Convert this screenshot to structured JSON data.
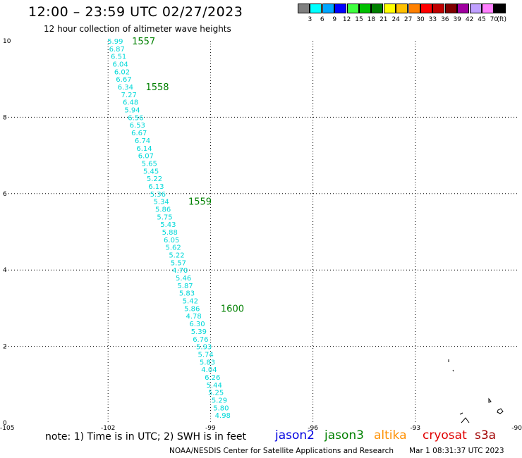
{
  "header": {
    "title": "12:00 – 23:59 UTC 02/27/2023",
    "subtitle": "12 hour collection of altimeter wave heights"
  },
  "colorbar": {
    "colors": [
      "#7f7f7f",
      "#00ffff",
      "#00a6ff",
      "#0000ff",
      "#40ff40",
      "#00c000",
      "#008000",
      "#ffff00",
      "#ffc000",
      "#ff8000",
      "#ff0000",
      "#c00000",
      "#800000",
      "#a000a0",
      "#c0a0ff",
      "#ff80ff",
      "#000000"
    ],
    "labels": [
      "3",
      "6",
      "9",
      "12",
      "15",
      "18",
      "21",
      "24",
      "27",
      "30",
      "33",
      "36",
      "39",
      "42",
      "45",
      "70"
    ],
    "unit": "(ft)"
  },
  "chart_data": {
    "type": "scatter",
    "xlim": [
      -105,
      -90
    ],
    "ylim": [
      0,
      10
    ],
    "x_ticks": [
      "-105",
      "-102",
      "-99",
      "-96",
      "-93",
      "-90"
    ],
    "y_ticks": [
      "0",
      "2",
      "4",
      "6",
      "8",
      "10"
    ],
    "grid": true,
    "track_color": "#00d8d8",
    "time_color": "#008000",
    "points": [
      {
        "x": -102.0,
        "y": 10.0,
        "v": "5.99"
      },
      {
        "x": -101.95,
        "y": 9.8,
        "v": "6.87"
      },
      {
        "x": -101.9,
        "y": 9.6,
        "v": "6.51"
      },
      {
        "x": -101.85,
        "y": 9.4,
        "v": "6.04"
      },
      {
        "x": -101.8,
        "y": 9.2,
        "v": "6.02"
      },
      {
        "x": -101.75,
        "y": 9.0,
        "v": "6.67"
      },
      {
        "x": -101.7,
        "y": 8.8,
        "v": "6.34"
      },
      {
        "x": -101.6,
        "y": 8.6,
        "v": "7.27"
      },
      {
        "x": -101.55,
        "y": 8.4,
        "v": "6.48"
      },
      {
        "x": -101.5,
        "y": 8.2,
        "v": "5.94"
      },
      {
        "x": -101.4,
        "y": 8.0,
        "v": "6.56"
      },
      {
        "x": -101.35,
        "y": 7.8,
        "v": "6.53"
      },
      {
        "x": -101.3,
        "y": 7.6,
        "v": "6.67"
      },
      {
        "x": -101.2,
        "y": 7.4,
        "v": "6.74"
      },
      {
        "x": -101.15,
        "y": 7.2,
        "v": "6.14"
      },
      {
        "x": -101.1,
        "y": 7.0,
        "v": "6.07"
      },
      {
        "x": -101.0,
        "y": 6.8,
        "v": "5.65"
      },
      {
        "x": -100.95,
        "y": 6.6,
        "v": "5.45"
      },
      {
        "x": -100.85,
        "y": 6.4,
        "v": "5.22"
      },
      {
        "x": -100.8,
        "y": 6.2,
        "v": "6.13"
      },
      {
        "x": -100.75,
        "y": 6.0,
        "v": "5.36"
      },
      {
        "x": -100.65,
        "y": 5.8,
        "v": "5.34"
      },
      {
        "x": -100.6,
        "y": 5.6,
        "v": "5.86"
      },
      {
        "x": -100.55,
        "y": 5.4,
        "v": "5.75"
      },
      {
        "x": -100.45,
        "y": 5.2,
        "v": "5.43"
      },
      {
        "x": -100.4,
        "y": 5.0,
        "v": "5.88"
      },
      {
        "x": -100.35,
        "y": 4.8,
        "v": "6.05"
      },
      {
        "x": -100.3,
        "y": 4.6,
        "v": "5.62"
      },
      {
        "x": -100.2,
        "y": 4.4,
        "v": "5.22"
      },
      {
        "x": -100.15,
        "y": 4.2,
        "v": "5.57"
      },
      {
        "x": -100.1,
        "y": 4.0,
        "v": "4.70"
      },
      {
        "x": -100.0,
        "y": 3.8,
        "v": "5.46"
      },
      {
        "x": -99.95,
        "y": 3.6,
        "v": "5.87"
      },
      {
        "x": -99.9,
        "y": 3.4,
        "v": "5.83"
      },
      {
        "x": -99.8,
        "y": 3.2,
        "v": "5.42"
      },
      {
        "x": -99.75,
        "y": 3.0,
        "v": "5.86"
      },
      {
        "x": -99.7,
        "y": 2.8,
        "v": "4.78"
      },
      {
        "x": -99.6,
        "y": 2.6,
        "v": "6.30"
      },
      {
        "x": -99.55,
        "y": 2.4,
        "v": "5.39"
      },
      {
        "x": -99.5,
        "y": 2.2,
        "v": "6.76"
      },
      {
        "x": -99.4,
        "y": 2.0,
        "v": "5.93"
      },
      {
        "x": -99.35,
        "y": 1.8,
        "v": "5.74"
      },
      {
        "x": -99.3,
        "y": 1.6,
        "v": "5.83"
      },
      {
        "x": -99.25,
        "y": 1.4,
        "v": "4.04"
      },
      {
        "x": -99.15,
        "y": 1.2,
        "v": "6.26"
      },
      {
        "x": -99.1,
        "y": 1.0,
        "v": "5.44"
      },
      {
        "x": -99.05,
        "y": 0.8,
        "v": "5.25"
      },
      {
        "x": -98.95,
        "y": 0.6,
        "v": "5.29"
      },
      {
        "x": -98.9,
        "y": 0.4,
        "v": "5.80"
      },
      {
        "x": -98.85,
        "y": 0.2,
        "v": "4.98"
      }
    ],
    "time_labels": [
      {
        "x": -101.3,
        "y": 10.0,
        "t": "1557"
      },
      {
        "x": -100.9,
        "y": 8.8,
        "t": "1558"
      },
      {
        "x": -99.65,
        "y": 5.8,
        "t": "1559"
      },
      {
        "x": -98.7,
        "y": 3.0,
        "t": "1600"
      }
    ]
  },
  "note": "note:  1) Time is in UTC; 2) SWH is in feet",
  "legend": [
    {
      "name": "jason2",
      "color": "#0000e0"
    },
    {
      "name": "jason3",
      "color": "#008000"
    },
    {
      "name": "altika",
      "color": "#ff9000"
    },
    {
      "name": "cryosat",
      "color": "#e00000"
    },
    {
      "name": "s3a",
      "color": "#a00000"
    }
  ],
  "footer": {
    "org": "NOAA/NESDIS Center for Satellite Applications and Research",
    "timestamp": "Mar  1 08:31:37 UTC 2023"
  }
}
